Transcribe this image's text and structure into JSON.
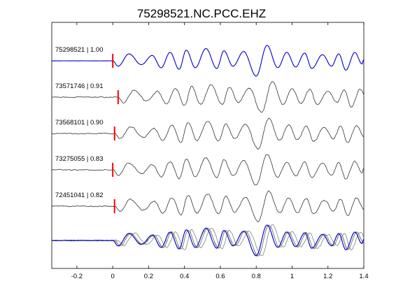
{
  "chart_data": {
    "type": "line",
    "title": "75298521.NC.PCC.EHZ",
    "xlabel": "",
    "ylabel": "",
    "xlim": [
      -0.34,
      1.4
    ],
    "xticks": [
      "-0.2",
      "0",
      "0.2",
      "0.4",
      "0.6",
      "0.8",
      "1",
      "1.2",
      "1.4"
    ],
    "xtick_values": [
      -0.2,
      0,
      0.2,
      0.4,
      0.6,
      0.8,
      1.0,
      1.2,
      1.4
    ],
    "colors": {
      "reference": "#0000cc",
      "trace": "#333333",
      "overlay": "#808080",
      "pick": "#ff0000",
      "axes": "#000000"
    },
    "traces": [
      {
        "label": "75298521 | 1.00",
        "id": "75298521",
        "cc": 1.0,
        "pick_time": 0.0,
        "color": "reference"
      },
      {
        "label": "73571746 | 0.91",
        "id": "73571746",
        "cc": 0.91,
        "pick_time": 0.03,
        "color": "trace"
      },
      {
        "label": "73568101 | 0.90",
        "id": "73568101",
        "cc": 0.9,
        "pick_time": 0.01,
        "color": "trace"
      },
      {
        "label": "73275055 | 0.83",
        "id": "73275055",
        "cc": 0.83,
        "pick_time": 0.0,
        "color": "trace"
      },
      {
        "label": "72451041 | 0.82",
        "id": "72451041",
        "cc": 0.82,
        "pick_time": 0.01,
        "color": "trace"
      }
    ],
    "waveform_extrema": [
      {
        "t": 0.0,
        "a": 0.0
      },
      {
        "t": 0.03,
        "a": -0.35
      },
      {
        "t": 0.09,
        "a": 0.45
      },
      {
        "t": 0.16,
        "a": -0.25
      },
      {
        "t": 0.22,
        "a": 0.35
      },
      {
        "t": 0.27,
        "a": -0.45
      },
      {
        "t": 0.32,
        "a": 0.55
      },
      {
        "t": 0.37,
        "a": -0.55
      },
      {
        "t": 0.41,
        "a": 0.7
      },
      {
        "t": 0.46,
        "a": -0.45
      },
      {
        "t": 0.52,
        "a": 0.8
      },
      {
        "t": 0.58,
        "a": -0.5
      },
      {
        "t": 0.62,
        "a": 0.65
      },
      {
        "t": 0.67,
        "a": -0.35
      },
      {
        "t": 0.73,
        "a": 0.6
      },
      {
        "t": 0.8,
        "a": -1.0
      },
      {
        "t": 0.86,
        "a": 1.0
      },
      {
        "t": 0.92,
        "a": -0.45
      },
      {
        "t": 0.97,
        "a": 0.55
      },
      {
        "t": 1.02,
        "a": -0.4
      },
      {
        "t": 1.07,
        "a": 0.5
      },
      {
        "t": 1.11,
        "a": -0.5
      },
      {
        "t": 1.17,
        "a": 0.4
      },
      {
        "t": 1.22,
        "a": -0.35
      },
      {
        "t": 1.26,
        "a": 0.45
      },
      {
        "t": 1.3,
        "a": -0.6
      },
      {
        "t": 1.35,
        "a": 0.55
      },
      {
        "t": 1.39,
        "a": -0.2
      },
      {
        "t": 1.4,
        "a": 0.1
      }
    ],
    "overlay": true,
    "grid": false
  }
}
